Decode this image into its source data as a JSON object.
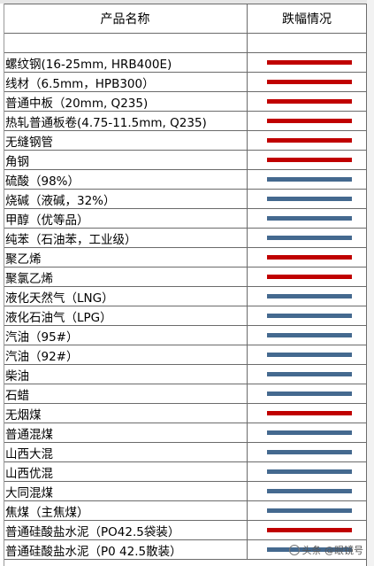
{
  "header": {
    "name_col": "产品名称",
    "trend_col": "跌幅情况"
  },
  "colors": {
    "up": "#c00000",
    "down": "#44698f"
  },
  "products": [
    {
      "name": "螺纹钢(16-25mm, HRB400E)",
      "trend": "up"
    },
    {
      "name": "线材（6.5mm，HPB300）",
      "trend": "up"
    },
    {
      "name": "普通中板（20mm, Q235)",
      "trend": "up"
    },
    {
      "name": "热轧普通板卷(4.75-11.5mm, Q235)",
      "trend": "up"
    },
    {
      "name": "无缝钢管",
      "trend": "up"
    },
    {
      "name": "角钢",
      "trend": "up"
    },
    {
      "name": "硫酸（98%）",
      "trend": "down"
    },
    {
      "name": "烧碱（液碱，32%）",
      "trend": "down"
    },
    {
      "name": "甲醇（优等品）",
      "trend": "down"
    },
    {
      "name": "纯苯（石油苯，工业级）",
      "trend": "down"
    },
    {
      "name": "聚乙烯",
      "trend": "up"
    },
    {
      "name": "聚氯乙烯",
      "trend": "up"
    },
    {
      "name": "液化天然气（LNG）",
      "trend": "down"
    },
    {
      "name": "液化石油气（LPG）",
      "trend": "down"
    },
    {
      "name": "汽油（95#）",
      "trend": "down"
    },
    {
      "name": "汽油（92#）",
      "trend": "down"
    },
    {
      "name": "柴油",
      "trend": "down"
    },
    {
      "name": "石蜡",
      "trend": "down"
    },
    {
      "name": "无烟煤",
      "trend": "up"
    },
    {
      "name": "普通混煤",
      "trend": "down"
    },
    {
      "name": "山西大混",
      "trend": "down"
    },
    {
      "name": "山西优混",
      "trend": "down"
    },
    {
      "name": "大同混煤",
      "trend": "down"
    },
    {
      "name": "焦煤（主焦煤）",
      "trend": "down"
    },
    {
      "name": "普通硅酸盐水泥（PO42.5袋装）",
      "trend": "up"
    },
    {
      "name": "普通硅酸盐水泥（P0 42.5散装）",
      "trend": "down"
    }
  ],
  "watermark": {
    "text": "头条 @眼镜号"
  }
}
